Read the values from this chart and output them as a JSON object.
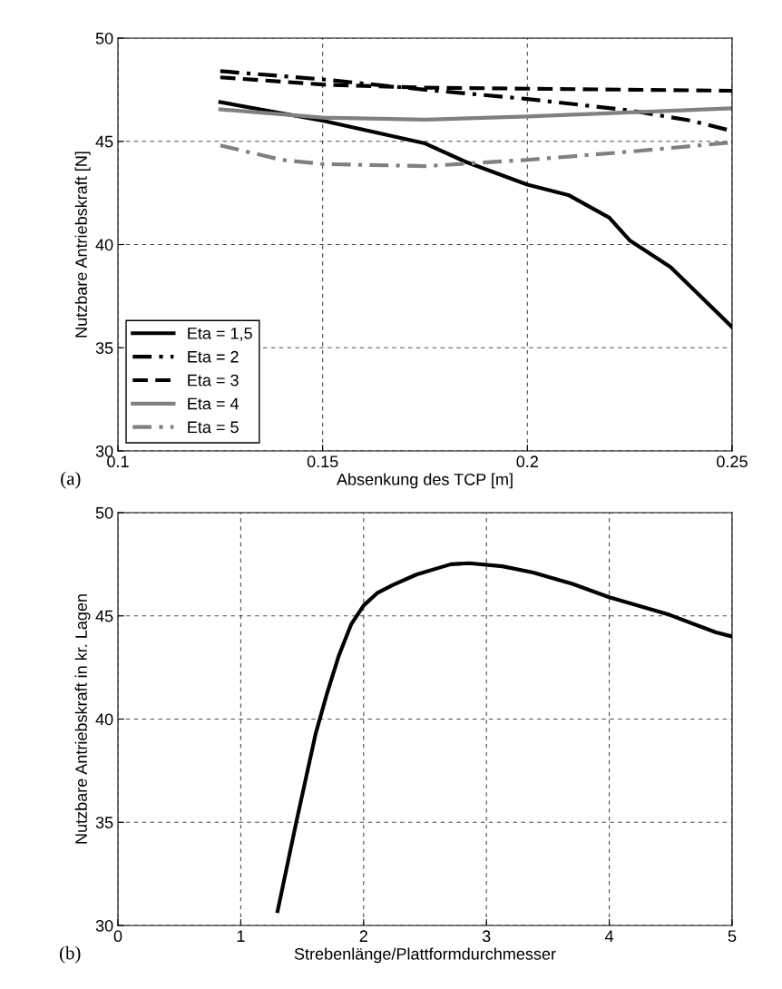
{
  "chart_data": [
    {
      "type": "line",
      "xlabel": "Absenkung des TCP [m]",
      "ylabel": "Nutzbare Antriebskraft [N]",
      "annotations": [
        "(a)"
      ],
      "xlim": [
        0.1,
        0.25
      ],
      "xticks": [
        0.1,
        0.15,
        0.2,
        0.25
      ],
      "ylim": [
        30,
        50
      ],
      "yticks": [
        30,
        35,
        40,
        45,
        50
      ],
      "grid": true,
      "legend": "bottom left",
      "series": [
        {
          "name": "Eta = 1,5",
          "color": "#000000",
          "line_style": "solid",
          "x": [
            0.125,
            0.15,
            0.175,
            0.185,
            0.2,
            0.21,
            0.22,
            0.225,
            0.235,
            0.25
          ],
          "values": [
            46.9,
            46.0,
            44.9,
            44.0,
            42.9,
            42.4,
            41.3,
            40.2,
            38.9,
            36.0
          ]
        },
        {
          "name": "Eta = 2",
          "color": "#000000",
          "line_style": "dashdot",
          "x": [
            0.125,
            0.15,
            0.175,
            0.2,
            0.225,
            0.24,
            0.25
          ],
          "values": [
            48.4,
            48.0,
            47.5,
            47.05,
            46.5,
            46.0,
            45.5
          ]
        },
        {
          "name": "Eta = 3",
          "color": "#000000",
          "line_style": "dashed",
          "x": [
            0.125,
            0.15,
            0.175,
            0.2,
            0.25
          ],
          "values": [
            48.1,
            47.75,
            47.6,
            47.55,
            47.45
          ]
        },
        {
          "name": "Eta = 4",
          "color": "#808080",
          "line_style": "solid",
          "x": [
            0.125,
            0.15,
            0.175,
            0.2,
            0.225,
            0.25
          ],
          "values": [
            46.55,
            46.15,
            46.05,
            46.2,
            46.4,
            46.6
          ]
        },
        {
          "name": "Eta = 5",
          "color": "#808080",
          "line_style": "dashdot",
          "x": [
            0.125,
            0.14,
            0.15,
            0.175,
            0.2,
            0.225,
            0.25
          ],
          "values": [
            44.8,
            44.1,
            43.9,
            43.8,
            44.1,
            44.5,
            44.95
          ]
        }
      ]
    },
    {
      "type": "line",
      "xlabel": "Strebenlänge/Plattformdurchmesser",
      "ylabel": "Nutzbare Antriebskraft in kr. Lagen",
      "annotations": [
        "(b)"
      ],
      "xlim": [
        0,
        5
      ],
      "xticks": [
        0,
        1,
        2,
        3,
        4,
        5
      ],
      "ylim": [
        30,
        50
      ],
      "yticks": [
        30,
        35,
        40,
        45,
        50
      ],
      "grid": true,
      "series": [
        {
          "color": "#000000",
          "line_style": "solid",
          "x": [
            1.3,
            1.45,
            1.61,
            1.7,
            1.8,
            1.9,
            2.0,
            2.11,
            2.24,
            2.43,
            2.71,
            2.86,
            3.13,
            3.38,
            3.7,
            4.0,
            4.49,
            4.87,
            5.0
          ],
          "values": [
            30.7,
            34.95,
            39.3,
            41.2,
            43.1,
            44.6,
            45.5,
            46.1,
            46.5,
            47.0,
            47.5,
            47.55,
            47.4,
            47.1,
            46.55,
            45.9,
            45.05,
            44.2,
            44.0
          ]
        }
      ]
    }
  ]
}
